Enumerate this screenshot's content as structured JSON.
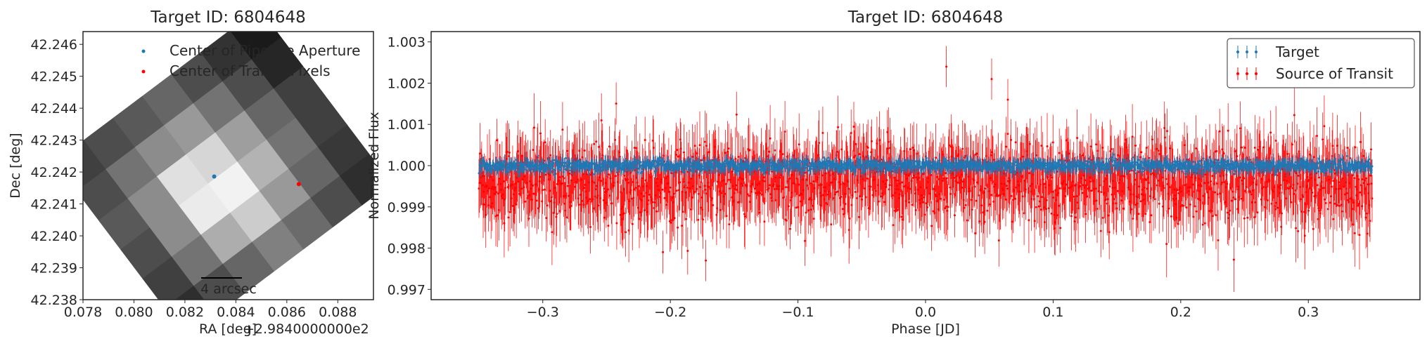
{
  "chart_data": [
    {
      "type": "heatmap",
      "title": "Target ID: 6804648",
      "xlabel": "RA [deg]",
      "ylabel": "Dec [deg]",
      "x_offset_label": "+2.9840000000e2",
      "xlim": [
        0.078,
        0.0894
      ],
      "ylim": [
        42.238,
        42.2464
      ],
      "xticks": [
        "0.078",
        "0.080",
        "0.082",
        "0.084",
        "0.086",
        "0.088"
      ],
      "yticks": [
        "42.238",
        "42.239",
        "42.240",
        "42.241",
        "42.242",
        "42.243",
        "42.244",
        "42.245",
        "42.246"
      ],
      "grid": false,
      "colormap": "gray",
      "rotation_deg": -37,
      "pixel_grid": {
        "rows": 6,
        "cols": 7,
        "values": [
          [
            0.25,
            0.3,
            0.35,
            0.4,
            0.3,
            0.2,
            0.1
          ],
          [
            0.3,
            0.45,
            0.55,
            0.6,
            0.45,
            0.3,
            0.15
          ],
          [
            0.35,
            0.55,
            0.88,
            0.84,
            0.62,
            0.4,
            0.25
          ],
          [
            0.3,
            0.55,
            0.92,
            0.95,
            0.7,
            0.45,
            0.25
          ],
          [
            0.25,
            0.45,
            0.68,
            0.8,
            0.6,
            0.4,
            0.22
          ],
          [
            0.18,
            0.3,
            0.4,
            0.5,
            0.42,
            0.3,
            0.18
          ]
        ]
      },
      "points": [
        {
          "name": "Center of Pipeline Aperture",
          "x": 0.08315,
          "y": 42.24186,
          "color": "#1f77b4"
        },
        {
          "name": "Center of Transit Pixels",
          "x": 0.08647,
          "y": 42.24162,
          "color": "#ff0000"
        }
      ],
      "legend": [
        "Center of Pipeline Aperture",
        "Center of Transit Pixels"
      ],
      "legend_position": "top-right",
      "scalebar_label": "4 arcsec"
    },
    {
      "type": "scatter",
      "title": "Target ID: 6804648",
      "xlabel": "Phase [JD]",
      "ylabel": "Normalized Flux",
      "xlim": [
        -0.3875,
        0.3875
      ],
      "ylim": [
        0.99675,
        1.00325
      ],
      "xticks": [
        "−0.3",
        "−0.2",
        "−0.1",
        "0.0",
        "0.1",
        "0.2",
        "0.3"
      ],
      "yticks": [
        "0.997",
        "0.998",
        "0.999",
        "1.000",
        "1.001",
        "1.002",
        "1.003"
      ],
      "grid": false,
      "legend_position": "top-right",
      "series": [
        {
          "name": "Target",
          "color": "#1f77b4",
          "x_range": [
            -0.35,
            0.35
          ],
          "center": 1.0,
          "scatter": 7e-05,
          "errorbar": 0.00015
        },
        {
          "name": "Source of Transit",
          "color": "#ff0000",
          "x_range": [
            -0.35,
            0.35
          ],
          "center": 0.9996,
          "scatter": 0.0005,
          "errorbar": 0.0007
        }
      ]
    }
  ]
}
